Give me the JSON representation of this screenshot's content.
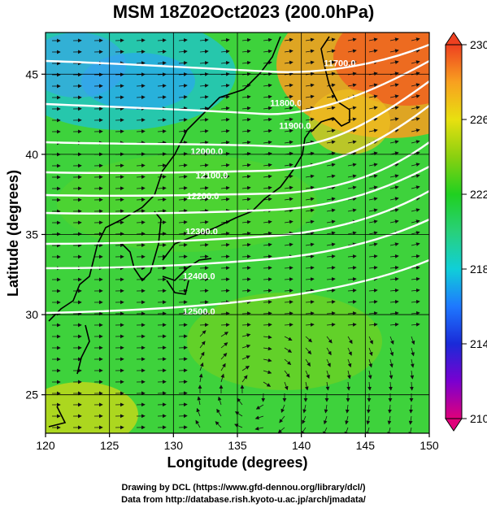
{
  "title": "MSM 18Z02Oct2023 (200.0hPa)",
  "map": {
    "x_axis_label": "Longitude (degrees)",
    "y_axis_label": "Latitude  (degrees)",
    "x_range": [
      120,
      150
    ],
    "y_range": [
      22.6,
      47.6
    ],
    "x_ticks": [
      "120",
      "125",
      "130",
      "135",
      "140",
      "145",
      "150"
    ],
    "y_ticks": [
      "25",
      "30",
      "35",
      "40",
      "45"
    ],
    "x_tick_values": [
      120,
      125,
      130,
      135,
      140,
      145,
      150
    ],
    "y_tick_values": [
      25,
      30,
      35,
      40,
      45
    ],
    "field": "temperature shading with streamlines and height contours",
    "contours": [
      {
        "label": "11700.0",
        "lon": 143.0,
        "lat": 45.5
      },
      {
        "label": "11800.0",
        "lon": 138.8,
        "lat": 43.0
      },
      {
        "label": "11900.0",
        "lon": 139.5,
        "lat": 41.6
      },
      {
        "label": "12000.0",
        "lon": 132.6,
        "lat": 40.0
      },
      {
        "label": "12100.0",
        "lon": 133.0,
        "lat": 38.5
      },
      {
        "label": "12200.0",
        "lon": 132.3,
        "lat": 37.2
      },
      {
        "label": "12300.0",
        "lon": 132.2,
        "lat": 35.0
      },
      {
        "label": "12400.0",
        "lon": 132.0,
        "lat": 32.2
      },
      {
        "label": "12500.0",
        "lon": 132.0,
        "lat": 30.0
      }
    ]
  },
  "colorbar": {
    "ticks": [
      "230",
      "226",
      "222",
      "218",
      "214",
      "210"
    ],
    "tick_values": [
      230,
      226,
      222,
      218,
      214,
      210
    ],
    "min": 210,
    "max": 230,
    "colors": [
      "#e0007a",
      "#7a00d0",
      "#1a2ad8",
      "#1e78ff",
      "#10cfd8",
      "#28d07a",
      "#20d020",
      "#8ad010",
      "#e8e010",
      "#f8a020",
      "#ee4020"
    ]
  },
  "credits": {
    "line1": "Drawing by DCL (https://www.gfd-dennou.org/library/dcl/)",
    "line2": "Data from http://database.rish.kyoto-u.ac.jp/arch/jmadata/"
  }
}
